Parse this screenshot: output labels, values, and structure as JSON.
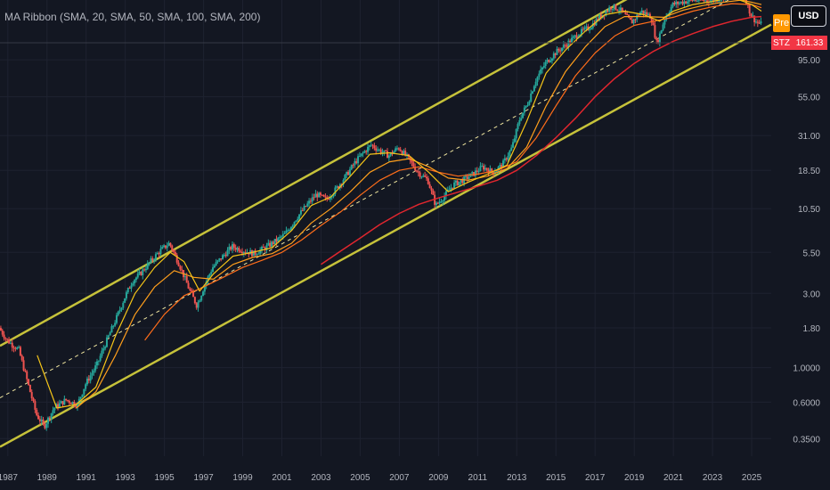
{
  "indicator_title": "MA Ribbon (SMA, 20, SMA, 50, SMA, 100, SMA, 200)",
  "currency_label": "USD",
  "pre_badge": "Pre",
  "symbol": "STZ",
  "last_price": "161.33",
  "colors": {
    "background": "#131722",
    "grid": "#1e2230",
    "candle_up": "#26a69a",
    "candle_down": "#ef5350",
    "channel": "#c6c23a",
    "ma20": "#f5c518",
    "ma50": "#ff9f1c",
    "ma100": "#ff6d1a",
    "ma200": "#e0262e",
    "midline": "#f0e6a0",
    "price_tag": "#f23645",
    "pre_badge": "#ff9800"
  },
  "chart_data": {
    "type": "candlestick",
    "scale": "log",
    "x_labels": [
      "1987",
      "1989",
      "1991",
      "1993",
      "1995",
      "1997",
      "1999",
      "2001",
      "2003",
      "2005",
      "2007",
      "2009",
      "2011",
      "2013",
      "2015",
      "2017",
      "2019",
      "2021",
      "2023",
      "2025"
    ],
    "y_labels": [
      "95.00",
      "55.00",
      "31.00",
      "18.50",
      "10.50",
      "5.50",
      "3.00",
      "1.80",
      "1.0000",
      "0.6000",
      "0.3500"
    ],
    "ylim": [
      0.27,
      230
    ],
    "xlim": [
      1986.6,
      2026.0
    ],
    "price_path": [
      [
        1986.6,
        1.8
      ],
      [
        1987.0,
        1.5
      ],
      [
        1987.6,
        1.3
      ],
      [
        1988.0,
        0.85
      ],
      [
        1988.5,
        0.5
      ],
      [
        1988.9,
        0.42
      ],
      [
        1989.4,
        0.55
      ],
      [
        1990.0,
        0.62
      ],
      [
        1990.6,
        0.58
      ],
      [
        1991.0,
        0.78
      ],
      [
        1991.6,
        1.05
      ],
      [
        1992.0,
        1.4
      ],
      [
        1992.6,
        2.1
      ],
      [
        1993.0,
        2.8
      ],
      [
        1993.4,
        3.6
      ],
      [
        1993.8,
        4.0
      ],
      [
        1994.2,
        4.6
      ],
      [
        1994.8,
        5.6
      ],
      [
        1995.3,
        6.3
      ],
      [
        1995.8,
        4.6
      ],
      [
        1996.3,
        3.2
      ],
      [
        1996.7,
        2.5
      ],
      [
        1997.1,
        3.4
      ],
      [
        1997.5,
        4.4
      ],
      [
        1997.9,
        5.0
      ],
      [
        1998.5,
        6.0
      ],
      [
        1999.0,
        5.7
      ],
      [
        1999.6,
        5.4
      ],
      [
        2000.2,
        5.9
      ],
      [
        2000.8,
        6.6
      ],
      [
        2001.2,
        7.2
      ],
      [
        2001.8,
        9.2
      ],
      [
        2002.3,
        11.0
      ],
      [
        2002.8,
        13.0
      ],
      [
        2003.3,
        12.0
      ],
      [
        2003.8,
        14.0
      ],
      [
        2004.3,
        17.0
      ],
      [
        2004.8,
        21.0
      ],
      [
        2005.2,
        24.0
      ],
      [
        2005.6,
        27.0
      ],
      [
        2006.0,
        25.0
      ],
      [
        2006.5,
        23.0
      ],
      [
        2007.0,
        26.0
      ],
      [
        2007.5,
        22.0
      ],
      [
        2008.0,
        18.0
      ],
      [
        2008.5,
        16.0
      ],
      [
        2008.9,
        11.0
      ],
      [
        2009.3,
        12.5
      ],
      [
        2009.8,
        15.0
      ],
      [
        2010.3,
        16.0
      ],
      [
        2010.8,
        17.5
      ],
      [
        2011.3,
        19.5
      ],
      [
        2011.8,
        18.0
      ],
      [
        2012.3,
        20.0
      ],
      [
        2012.8,
        26.0
      ],
      [
        2013.2,
        40.0
      ],
      [
        2013.6,
        50.0
      ],
      [
        2014.0,
        70.0
      ],
      [
        2014.5,
        90.0
      ],
      [
        2015.0,
        105.0
      ],
      [
        2015.6,
        120.0
      ],
      [
        2016.2,
        140.0
      ],
      [
        2016.8,
        155.0
      ],
      [
        2017.3,
        180.0
      ],
      [
        2017.9,
        210.0
      ],
      [
        2018.3,
        200.0
      ],
      [
        2018.9,
        165.0
      ],
      [
        2019.4,
        195.0
      ],
      [
        2019.9,
        180.0
      ],
      [
        2020.2,
        120.0
      ],
      [
        2020.6,
        175.0
      ],
      [
        2021.0,
        215.0
      ],
      [
        2021.6,
        225.0
      ],
      [
        2022.2,
        230.0
      ],
      [
        2022.7,
        228.0
      ],
      [
        2023.2,
        232.0
      ],
      [
        2023.7,
        245.0
      ],
      [
        2024.2,
        250.0
      ],
      [
        2024.7,
        240.0
      ],
      [
        2025.0,
        185.0
      ],
      [
        2025.3,
        165.0
      ],
      [
        2025.5,
        161.33
      ]
    ],
    "channel_upper": [
      [
        1986.6,
        1.38
      ],
      [
        2026.0,
        760.0
      ]
    ],
    "channel_lower": [
      [
        1986.6,
        0.31
      ],
      [
        2026.0,
        160.0
      ]
    ],
    "midline": [
      [
        1986.6,
        0.64
      ],
      [
        2025.5,
        300.0
      ]
    ],
    "ma20_path": [
      [
        1988.5,
        1.2
      ],
      [
        1989.5,
        0.55
      ],
      [
        1990.5,
        0.58
      ],
      [
        1991.5,
        0.75
      ],
      [
        1992.5,
        1.6
      ],
      [
        1993.5,
        3.0
      ],
      [
        1994.5,
        4.4
      ],
      [
        1995.3,
        5.5
      ],
      [
        1996.0,
        4.8
      ],
      [
        1996.8,
        3.1
      ],
      [
        1997.5,
        4.0
      ],
      [
        1998.5,
        5.2
      ],
      [
        1999.5,
        5.5
      ],
      [
        2000.5,
        5.9
      ],
      [
        2001.5,
        7.6
      ],
      [
        2002.5,
        11.0
      ],
      [
        2003.5,
        12.5
      ],
      [
        2004.5,
        17.0
      ],
      [
        2005.5,
        23.5
      ],
      [
        2006.5,
        24.0
      ],
      [
        2007.5,
        23.0
      ],
      [
        2008.5,
        18.0
      ],
      [
        2009.5,
        13.5
      ],
      [
        2010.5,
        15.5
      ],
      [
        2011.5,
        17.5
      ],
      [
        2012.5,
        20.0
      ],
      [
        2013.5,
        38.0
      ],
      [
        2014.5,
        78.0
      ],
      [
        2015.5,
        110.0
      ],
      [
        2016.5,
        145.0
      ],
      [
        2017.5,
        185.0
      ],
      [
        2018.5,
        195.0
      ],
      [
        2019.5,
        185.0
      ],
      [
        2020.3,
        168.0
      ],
      [
        2021.0,
        195.0
      ],
      [
        2022.0,
        215.0
      ],
      [
        2023.0,
        225.0
      ],
      [
        2024.0,
        240.0
      ],
      [
        2025.0,
        215.0
      ],
      [
        2025.5,
        195.0
      ]
    ],
    "ma50_path": [
      [
        1990.5,
        0.55
      ],
      [
        1991.5,
        0.7
      ],
      [
        1992.5,
        1.2
      ],
      [
        1993.5,
        2.2
      ],
      [
        1994.5,
        3.3
      ],
      [
        1995.5,
        4.2
      ],
      [
        1996.5,
        3.8
      ],
      [
        1997.5,
        3.7
      ],
      [
        1998.5,
        4.6
      ],
      [
        1999.5,
        5.1
      ],
      [
        2000.5,
        5.4
      ],
      [
        2001.5,
        6.3
      ],
      [
        2002.5,
        8.5
      ],
      [
        2003.5,
        10.5
      ],
      [
        2004.5,
        13.5
      ],
      [
        2005.5,
        18.0
      ],
      [
        2006.5,
        21.0
      ],
      [
        2007.5,
        22.0
      ],
      [
        2008.5,
        19.5
      ],
      [
        2009.5,
        16.5
      ],
      [
        2010.5,
        16.0
      ],
      [
        2011.5,
        17.0
      ],
      [
        2012.5,
        19.0
      ],
      [
        2013.5,
        26.0
      ],
      [
        2014.5,
        48.0
      ],
      [
        2015.5,
        80.0
      ],
      [
        2016.5,
        115.0
      ],
      [
        2017.5,
        155.0
      ],
      [
        2018.5,
        180.0
      ],
      [
        2019.5,
        180.0
      ],
      [
        2020.5,
        178.0
      ],
      [
        2021.5,
        198.0
      ],
      [
        2022.5,
        212.0
      ],
      [
        2023.5,
        222.0
      ],
      [
        2024.5,
        230.0
      ],
      [
        2025.5,
        215.0
      ]
    ],
    "ma100_path": [
      [
        1994.0,
        1.5
      ],
      [
        1995.0,
        2.2
      ],
      [
        1996.0,
        2.9
      ],
      [
        1997.0,
        3.3
      ],
      [
        1998.0,
        3.8
      ],
      [
        1999.0,
        4.4
      ],
      [
        2000.0,
        4.9
      ],
      [
        2001.0,
        5.5
      ],
      [
        2002.0,
        6.6
      ],
      [
        2003.0,
        8.2
      ],
      [
        2004.0,
        10.0
      ],
      [
        2005.0,
        12.8
      ],
      [
        2006.0,
        16.0
      ],
      [
        2007.0,
        18.5
      ],
      [
        2008.0,
        19.5
      ],
      [
        2009.0,
        18.0
      ],
      [
        2010.0,
        17.0
      ],
      [
        2011.0,
        17.5
      ],
      [
        2012.0,
        18.5
      ],
      [
        2013.0,
        21.0
      ],
      [
        2014.0,
        30.0
      ],
      [
        2015.0,
        48.0
      ],
      [
        2016.0,
        75.0
      ],
      [
        2017.0,
        105.0
      ],
      [
        2018.0,
        135.0
      ],
      [
        2019.0,
        158.0
      ],
      [
        2020.0,
        168.0
      ],
      [
        2021.0,
        178.0
      ],
      [
        2022.0,
        195.0
      ],
      [
        2023.0,
        208.0
      ],
      [
        2024.0,
        218.0
      ],
      [
        2025.0,
        215.0
      ],
      [
        2025.5,
        205.0
      ]
    ],
    "ma200_path": [
      [
        2003.0,
        4.6
      ],
      [
        2004.0,
        5.6
      ],
      [
        2005.0,
        6.8
      ],
      [
        2006.0,
        8.3
      ],
      [
        2007.0,
        9.8
      ],
      [
        2008.0,
        11.2
      ],
      [
        2009.0,
        12.3
      ],
      [
        2010.0,
        13.4
      ],
      [
        2011.0,
        14.6
      ],
      [
        2012.0,
        16.0
      ],
      [
        2013.0,
        18.5
      ],
      [
        2014.0,
        23.0
      ],
      [
        2015.0,
        30.0
      ],
      [
        2016.0,
        40.0
      ],
      [
        2017.0,
        55.0
      ],
      [
        2018.0,
        72.0
      ],
      [
        2019.0,
        90.0
      ],
      [
        2020.0,
        108.0
      ],
      [
        2021.0,
        125.0
      ],
      [
        2022.0,
        140.0
      ],
      [
        2023.0,
        155.0
      ],
      [
        2024.0,
        168.0
      ],
      [
        2025.0,
        178.0
      ],
      [
        2025.5,
        180.0
      ]
    ]
  }
}
